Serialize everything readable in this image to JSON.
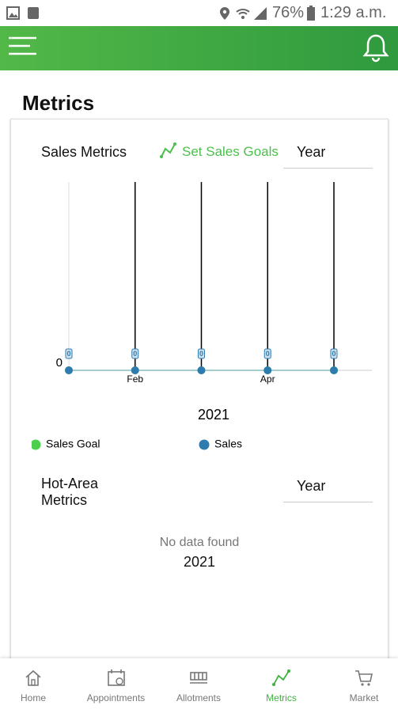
{
  "status_bar": {
    "battery": "76%",
    "time": "1:29 a.m."
  },
  "page": {
    "title": "Metrics"
  },
  "sales_card": {
    "title": "Sales Metrics",
    "action": "Set Sales Goals",
    "period": "Year"
  },
  "chart_data": {
    "type": "line",
    "categories": [
      null,
      "Feb",
      null,
      "Apr",
      null
    ],
    "series": [
      {
        "name": "Sales Goal",
        "color": "#4cd04c",
        "values": [
          0,
          0,
          0,
          0,
          0
        ]
      },
      {
        "name": "Sales",
        "color": "#2e7bb0",
        "values": [
          0,
          0,
          0,
          0,
          0
        ]
      }
    ],
    "ylim": [
      0,
      1
    ],
    "yticks": [
      0
    ],
    "x_label": "2021"
  },
  "hot_area": {
    "title": "Hot-Area Metrics",
    "period": "Year",
    "empty": "No data found",
    "year": "2021"
  },
  "nav": [
    {
      "label": "Home"
    },
    {
      "label": "Appointments"
    },
    {
      "label": "Allotments"
    },
    {
      "label": "Metrics"
    },
    {
      "label": "Market"
    }
  ]
}
